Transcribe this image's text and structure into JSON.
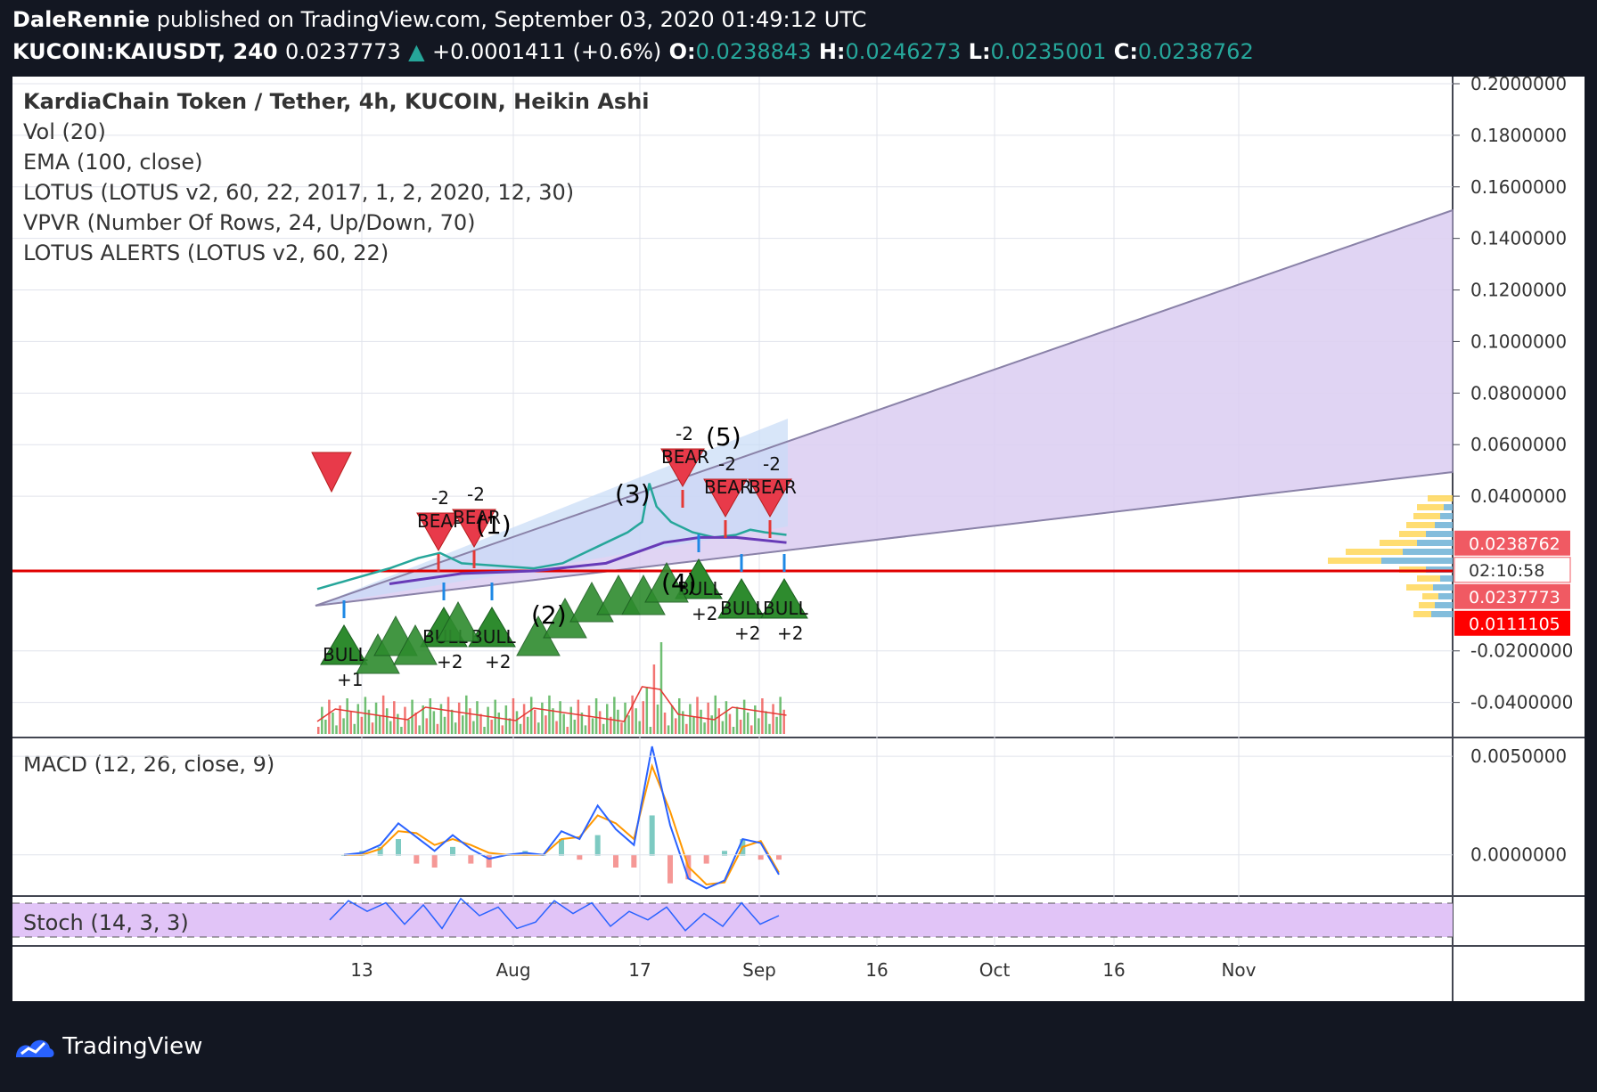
{
  "header": {
    "author": "DaleRennie",
    "published": "published on TradingView.com, September 03, 2020 01:49:12 UTC",
    "symbol": "KUCOIN:KAIUSDT, 240",
    "last": "0.0237773",
    "arrow": "▲",
    "change": "+0.0001411 (+0.6%)",
    "o_label": "O:",
    "o": "0.0238843",
    "h_label": "H:",
    "h": "0.0246273",
    "l_label": "L:",
    "l": "0.0235001",
    "c_label": "C:",
    "c": "0.0238762"
  },
  "legend": {
    "title": "KardiaChain Token / Tether, 4h, KUCOIN, Heikin Ashi",
    "items": [
      "Vol (20)",
      "EMA (100, close)",
      "LOTUS (LOTUS v2, 60, 22, 2017, 1, 2, 2020, 12, 30)",
      "VPVR (Number Of Rows, 24, Up/Down, 70)",
      "LOTUS ALERTS (LOTUS v2, 60, 22)"
    ]
  },
  "macd_label": "MACD (12, 26, close, 9)",
  "stoch_label": "Stoch (14, 3, 3)",
  "footer": {
    "brand": "TradingView"
  },
  "colors": {
    "up": "#26a69a",
    "down": "#ef5350",
    "ema": "#673ab7",
    "support": "#e00000",
    "bull": "#2e8b2e",
    "bear": "#e83a4a",
    "macd": "#2962ff",
    "signal": "#ff9800",
    "stoch_band": "#e1c4f7"
  },
  "chart_data": [
    {
      "type": "candlestick",
      "title": "KardiaChain Token / Tether, 4h, KUCOIN, Heikin Ashi",
      "y_ticks": [
        "0.2000000",
        "0.1800000",
        "0.1600000",
        "0.1400000",
        "0.1200000",
        "0.1000000",
        "0.0800000",
        "0.0600000",
        "0.0400000",
        "-0.0200000",
        "-0.0400000"
      ],
      "y_tick_values": [
        0.2,
        0.18,
        0.16,
        0.14,
        0.12,
        0.1,
        0.08,
        0.06,
        0.04,
        -0.02,
        -0.04
      ],
      "ylim": [
        -0.046,
        0.2
      ],
      "x_ticks": [
        "13",
        "Aug",
        "17",
        "Sep",
        "16",
        "Oct",
        "16",
        "Nov"
      ],
      "price_labels": [
        "0.0238762",
        "02:10:58",
        "0.0237773",
        "0.0111105"
      ],
      "price_label_values": [
        0.0238762,
        null,
        0.0237773,
        0.0111105
      ],
      "support_level": 0.011,
      "price_path": [
        [
          0,
          0.004
        ],
        [
          10,
          0.008
        ],
        [
          20,
          0.012
        ],
        [
          28,
          0.016
        ],
        [
          34,
          0.018
        ],
        [
          40,
          0.014
        ],
        [
          50,
          0.013
        ],
        [
          60,
          0.012
        ],
        [
          68,
          0.014
        ],
        [
          74,
          0.018
        ],
        [
          80,
          0.022
        ],
        [
          86,
          0.026
        ],
        [
          90,
          0.03
        ],
        [
          92,
          0.045
        ],
        [
          94,
          0.036
        ],
        [
          98,
          0.03
        ],
        [
          104,
          0.026
        ],
        [
          110,
          0.024
        ],
        [
          116,
          0.025
        ],
        [
          120,
          0.027
        ],
        [
          124,
          0.026
        ],
        [
          130,
          0.025
        ]
      ],
      "ema_path": [
        [
          20,
          0.006
        ],
        [
          40,
          0.01
        ],
        [
          60,
          0.011
        ],
        [
          80,
          0.014
        ],
        [
          96,
          0.022
        ],
        [
          106,
          0.024
        ],
        [
          116,
          0.024
        ],
        [
          130,
          0.022
        ]
      ],
      "wave_labels": [
        "(1)",
        "(2)",
        "(3)",
        "(4)",
        "(5)"
      ],
      "signals": {
        "bull": [
          {
            "label": "BULL",
            "score": "+1"
          },
          {
            "label": "BULL",
            "score": "+2"
          },
          {
            "label": "BULL",
            "score": "+2"
          },
          {
            "label": "BULL",
            "score": "+2"
          },
          {
            "label": "BULL",
            "score": "+2"
          },
          {
            "label": "BULL",
            "score": "+2"
          }
        ],
        "bear": [
          {
            "label": "BEAR",
            "score": "-2"
          },
          {
            "label": "BEAR",
            "score": "-2"
          },
          {
            "label": "BEAR",
            "score": "-2"
          },
          {
            "label": "BEAR",
            "score": "-2"
          },
          {
            "label": "BEAR",
            "score": "-2"
          }
        ]
      }
    },
    {
      "type": "line",
      "title": "MACD (12, 26, close, 9)",
      "y_ticks": [
        "0.0050000",
        "0.0000000"
      ],
      "y_tick_values": [
        0.005,
        0.0
      ],
      "ylim": [
        -0.002,
        0.0055
      ],
      "series": [
        {
          "name": "MACD",
          "values": [
            0,
            0.0001,
            0.0005,
            0.0016,
            0.0009,
            0.0002,
            0.001,
            0.0003,
            -0.0002,
            0,
            0.0001,
            0,
            0.0012,
            0.0008,
            0.0025,
            0.0013,
            0.0005,
            0.0055,
            0.0015,
            -0.0012,
            -0.0017,
            -0.0013,
            0.0008,
            0.0006,
            -0.001
          ]
        },
        {
          "name": "Signal",
          "values": [
            0,
            0,
            0.0003,
            0.0012,
            0.0011,
            0.0005,
            0.0008,
            0.0005,
            0.0001,
            0,
            0,
            0,
            0.0008,
            0.0009,
            0.002,
            0.0016,
            0.0008,
            0.0045,
            0.0022,
            -0.0006,
            -0.0015,
            -0.0014,
            0.0004,
            0.0007,
            -0.0009
          ]
        }
      ]
    },
    {
      "type": "line",
      "title": "Stoch (14, 3, 3)",
      "ylim": [
        0,
        100
      ],
      "series": [
        {
          "name": "%K",
          "values": [
            40,
            85,
            60,
            80,
            30,
            75,
            20,
            90,
            50,
            70,
            20,
            35,
            85,
            55,
            80,
            25,
            60,
            40,
            70,
            15,
            55,
            25,
            80,
            30,
            50
          ]
        }
      ]
    }
  ]
}
